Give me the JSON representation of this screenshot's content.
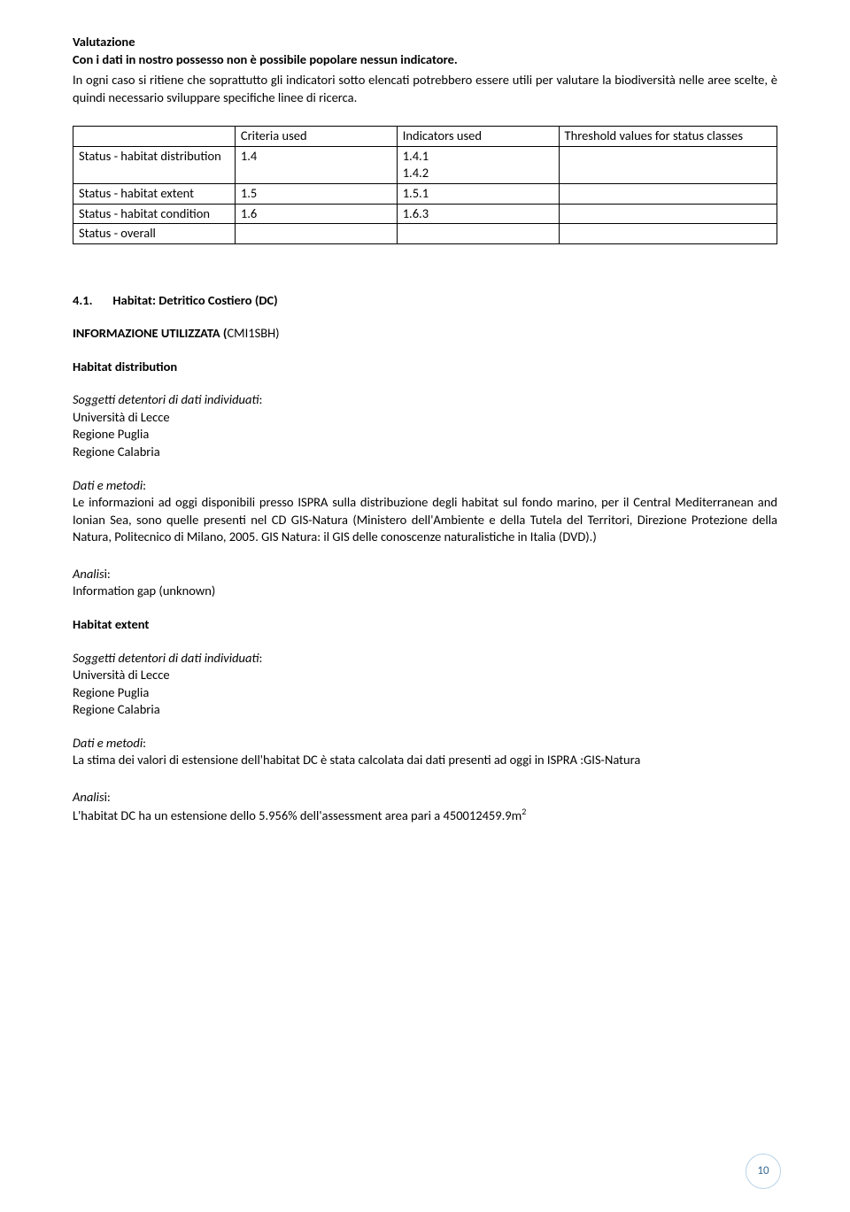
{
  "sec1": {
    "heading": "Valutazione",
    "line1": "Con i dati in nostro possesso non è possibile popolare nessun indicatore.",
    "line2": "In ogni caso si ritiene che soprattutto gli indicatori sotto elencati potrebbero essere utili per valutare la biodiversità nelle aree scelte, è quindi necessario sviluppare specifiche linee di ricerca."
  },
  "table": {
    "headers": [
      "",
      "Criteria used",
      "Indicators used",
      "Threshold values for status classes"
    ],
    "rows": [
      [
        "Status - habitat distribution",
        "1.4",
        "1.4.1\n1.4.2",
        ""
      ],
      [
        "Status - habitat extent",
        "1.5",
        "1.5.1",
        ""
      ],
      [
        "Status - habitat condition",
        "1.6",
        "1.6.3",
        ""
      ],
      [
        "Status - overall",
        "",
        "",
        ""
      ]
    ]
  },
  "sec2": {
    "num": "4.1.",
    "title": "Habitat: Detritico Costiero (DC)",
    "info_heading": "INFORMAZIONE UTILIZZATA  (",
    "info_code": "CMI1SBH)"
  },
  "habDist": {
    "heading": "Habitat distribution",
    "sogg_label": "Soggetti detentori di dati individuati",
    "sogg_items": [
      "Università di Lecce",
      "Regione Puglia",
      "Regione Calabria"
    ],
    "dati_label": "Dati e metodi",
    "dati_text": "Le informazioni  ad oggi disponibili presso ISPRA sulla distribuzione degli habitat sul fondo marino, per il Central Mediterranean  and Ionian Sea,  sono quelle presenti nel CD GIS-Natura (Ministero dell'Ambiente e della Tutela del Territori, Direzione Protezione della Natura, Politecnico di Milano, 2005. GIS Natura: il GIS delle conoscenze naturalistiche in Italia (DVD).)",
    "analisi_label": "Analis",
    "analisi_suffix": "i:",
    "analisi_text": "Information gap (unknown)"
  },
  "habExt": {
    "heading": "Habitat extent",
    "sogg_label": "Soggetti detentori di dati individuati",
    "sogg_items": [
      "Università di Lecce",
      "Regione Puglia",
      "Regione Calabria"
    ],
    "dati_label": "Dati e metodi",
    "dati_text": "La  stima dei valori di estensione dell'habitat DC è stata calcolata dai dati presenti ad oggi in ISPRA  :GIS-Natura",
    "analisi_label": "Analis",
    "analisi_suffix": "i:",
    "analisi_text": "L'habitat DC ha un estensione dello 5.956% dell'assessment area  pari a 450012459.9m",
    "analisi_sup": "2"
  },
  "page": "10"
}
